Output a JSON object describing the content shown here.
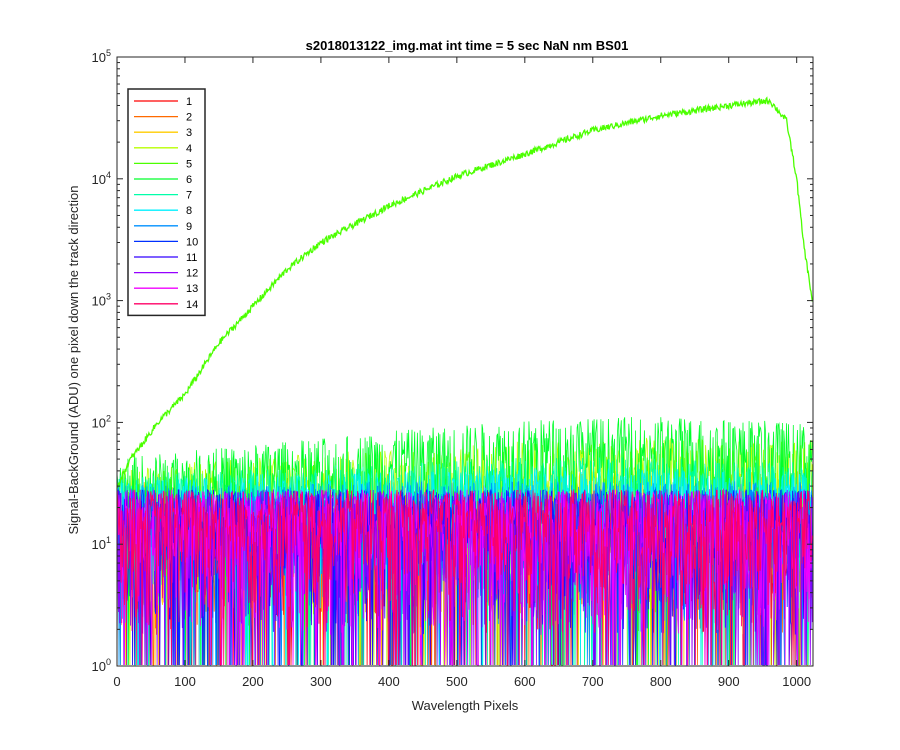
{
  "chart_data": {
    "type": "line",
    "title": "s2018013122_img.mat int time = 5 sec  NaN nm BS01",
    "xlabel": "Wavelength Pixels",
    "ylabel": "Signal-BackGround (ADU) one pixel down the track direction",
    "xlim": [
      0,
      1024
    ],
    "ylim": [
      1,
      100000
    ],
    "yscale": "log",
    "grid": false,
    "legend_position": "top-left",
    "x_ticks": [
      0,
      100,
      200,
      300,
      400,
      500,
      600,
      700,
      800,
      900,
      1000
    ],
    "y_ticks": [
      {
        "base": "10",
        "exp": "0",
        "value": 1
      },
      {
        "base": "10",
        "exp": "1",
        "value": 10
      },
      {
        "base": "10",
        "exp": "2",
        "value": 100
      },
      {
        "base": "10",
        "exp": "3",
        "value": 1000
      },
      {
        "base": "10",
        "exp": "4",
        "value": 10000
      },
      {
        "base": "10",
        "exp": "5",
        "value": 100000
      }
    ],
    "series": [
      {
        "name": "1",
        "color": "#ff0000",
        "x": [
          0,
          200,
          400,
          600,
          800,
          1023
        ],
        "y": [
          12,
          12,
          12,
          12,
          12,
          12
        ]
      },
      {
        "name": "2",
        "color": "#ff6a00",
        "x": [
          0,
          200,
          400,
          600,
          800,
          1023
        ],
        "y": [
          12,
          12,
          12,
          12,
          12,
          12
        ]
      },
      {
        "name": "3",
        "color": "#ffcc00",
        "x": [
          0,
          200,
          400,
          600,
          800,
          1023
        ],
        "y": [
          14,
          15,
          16,
          17,
          17,
          17
        ]
      },
      {
        "name": "4",
        "color": "#b8ff00",
        "x": [
          0,
          200,
          400,
          600,
          800,
          1023
        ],
        "y": [
          18,
          22,
          26,
          30,
          32,
          30
        ]
      },
      {
        "name": "5",
        "color": "#4cff00",
        "x": [
          0,
          20,
          40,
          60,
          100,
          150,
          200,
          250,
          300,
          400,
          500,
          600,
          700,
          800,
          900,
          960,
          985,
          1000,
          1010,
          1023
        ],
        "y": [
          30,
          50,
          70,
          100,
          170,
          450,
          900,
          1800,
          3000,
          6000,
          10500,
          16000,
          25000,
          33000,
          40000,
          44000,
          30000,
          10000,
          3000,
          1000
        ]
      },
      {
        "name": "6",
        "color": "#00ff2a",
        "x": [
          0,
          200,
          400,
          600,
          800,
          1023
        ],
        "y": [
          22,
          28,
          36,
          45,
          48,
          42
        ]
      },
      {
        "name": "7",
        "color": "#00ffaa",
        "x": [
          0,
          200,
          400,
          600,
          800,
          1023
        ],
        "y": [
          16,
          18,
          20,
          22,
          22,
          20
        ]
      },
      {
        "name": "8",
        "color": "#00f0ff",
        "x": [
          0,
          200,
          400,
          600,
          800,
          1023
        ],
        "y": [
          15,
          16,
          17,
          18,
          18,
          17
        ]
      },
      {
        "name": "9",
        "color": "#0090ff",
        "x": [
          0,
          200,
          400,
          600,
          800,
          1023
        ],
        "y": [
          13,
          13,
          14,
          14,
          14,
          14
        ]
      },
      {
        "name": "10",
        "color": "#0030ff",
        "x": [
          0,
          200,
          400,
          600,
          800,
          1023
        ],
        "y": [
          12,
          12,
          12,
          12,
          12,
          12
        ]
      },
      {
        "name": "11",
        "color": "#3000ff",
        "x": [
          0,
          200,
          400,
          600,
          800,
          1023
        ],
        "y": [
          12,
          12,
          12,
          12,
          12,
          12
        ]
      },
      {
        "name": "12",
        "color": "#9600ff",
        "x": [
          0,
          200,
          400,
          600,
          800,
          1023
        ],
        "y": [
          12,
          12,
          12,
          12,
          12,
          12
        ]
      },
      {
        "name": "13",
        "color": "#f000ff",
        "x": [
          0,
          200,
          400,
          600,
          800,
          1023
        ],
        "y": [
          12,
          12,
          12,
          12,
          12,
          12
        ]
      },
      {
        "name": "14",
        "color": "#ff0066",
        "x": [
          0,
          200,
          400,
          600,
          800,
          1023
        ],
        "y": [
          12,
          12,
          12,
          12,
          12,
          12
        ]
      }
    ]
  }
}
